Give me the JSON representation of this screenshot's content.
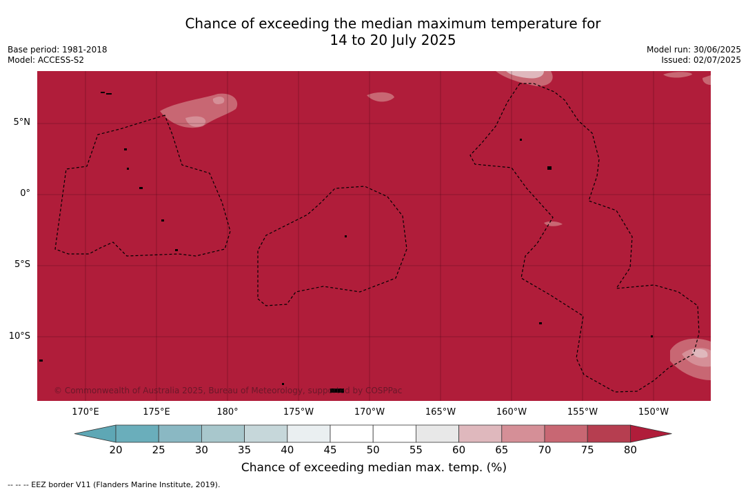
{
  "title": {
    "line1": "Chance of exceeding the median maximum temperature for",
    "line2": "14 to 20 July 2025"
  },
  "meta": {
    "base_period": "Base period: 1981-2018",
    "model": "Model: ACCESS-S2",
    "model_run": "Model run: 30/06/2025",
    "issued": "Issued: 02/07/2025"
  },
  "map": {
    "background_color": "#b01d3a",
    "lat_labels": [
      "5°N",
      "0°",
      "5°S",
      "10°S"
    ],
    "lon_labels": [
      "170°E",
      "175°E",
      "180°",
      "175°W",
      "170°W",
      "165°W",
      "160°W",
      "155°W",
      "150°W"
    ],
    "copyright": "© Commonwealth of Australia 2025, Bureau of Meteorology, supported by COSPPac"
  },
  "colorbar": {
    "ticks": [
      "20",
      "25",
      "30",
      "35",
      "40",
      "45",
      "50",
      "55",
      "60",
      "65",
      "70",
      "75",
      "80"
    ],
    "colors": [
      "#5ea7b5",
      "#6aaebb",
      "#8ab8c3",
      "#a8c7cc",
      "#c6d7da",
      "#eaeff1",
      "#ffffff",
      "#ffffff",
      "#e8e8e8",
      "#dfb8bd",
      "#d58f97",
      "#c86773",
      "#b63e50",
      "#b01d3a"
    ],
    "label": "Chance of exceeding median max. temp. (%)"
  },
  "footnote": "--  --  -- EEZ border V11 (Flanders Marine Institute, 2019)."
}
